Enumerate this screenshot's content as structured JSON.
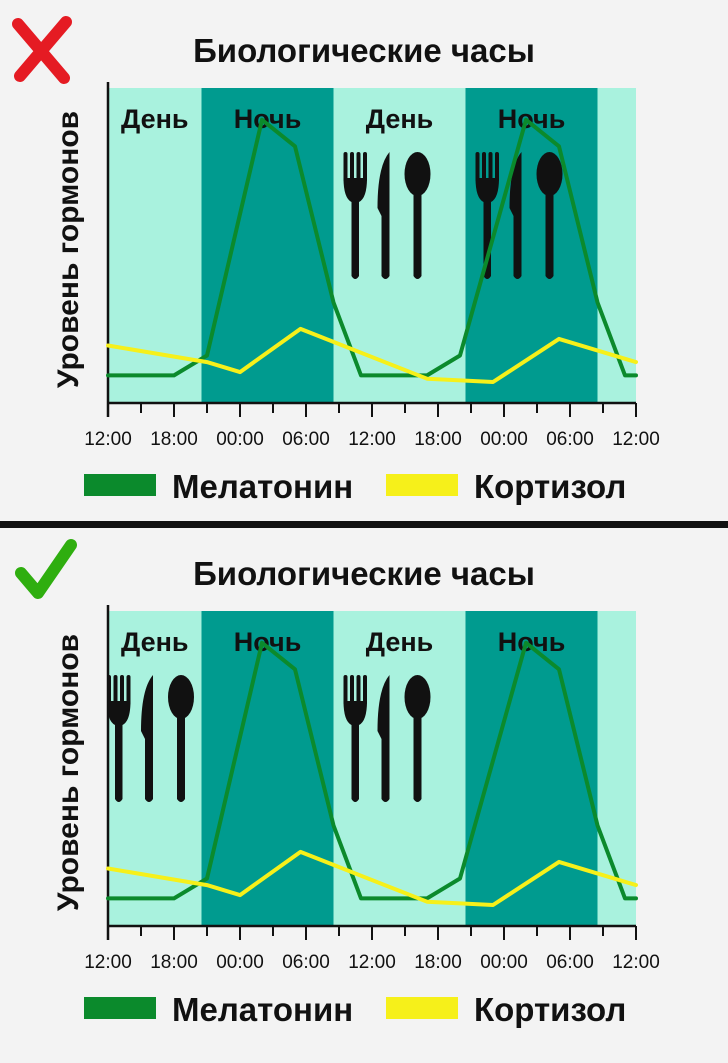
{
  "colors": {
    "background": "#f3f3f3",
    "day_band": "#a9f2de",
    "night_band": "#009b8f",
    "melatonin": "#0b8a2c",
    "cortisol": "#f6f01a",
    "cross": "#e51b23",
    "check": "#2fae0f",
    "divider": "#111111",
    "cutlery": "#111111"
  },
  "chart_data": [
    {
      "type": "line",
      "badge": "cross-icon",
      "title": "Биологические часы",
      "ylabel": "Уровень гормонов",
      "xlabel": "",
      "x_ticks": [
        "12:00",
        "18:00",
        "00:00",
        "06:00",
        "12:00",
        "18:00",
        "00:00",
        "06:00",
        "12:00"
      ],
      "x_hours": [
        0,
        6,
        12,
        18,
        24,
        30,
        36,
        42,
        48
      ],
      "xlim": [
        0,
        48
      ],
      "ylim": [
        0,
        100
      ],
      "bands": [
        {
          "label": "День",
          "start": 0,
          "end": 8.5,
          "kind": "day"
        },
        {
          "label": "Ночь",
          "start": 8.5,
          "end": 20.5,
          "kind": "night"
        },
        {
          "label": "День",
          "start": 20.5,
          "end": 32.5,
          "kind": "day"
        },
        {
          "label": "Ночь",
          "start": 32.5,
          "end": 44.5,
          "kind": "night"
        },
        {
          "label": "",
          "start": 44.5,
          "end": 48,
          "kind": "day"
        }
      ],
      "meals": [
        {
          "name": "cutlery-icon",
          "hour": 25.5,
          "level": 53
        },
        {
          "name": "cutlery-icon",
          "hour": 37.5,
          "level": 53
        }
      ],
      "series": [
        {
          "name": "Мелатонин",
          "color": "#0b8a2c",
          "x": [
            0,
            6,
            9,
            14,
            17,
            20.5,
            23,
            29,
            32,
            38,
            41,
            44.5,
            47,
            48
          ],
          "y": [
            5,
            5,
            11,
            82,
            74,
            27,
            5,
            5,
            11,
            82,
            74,
            27,
            5,
            5
          ]
        },
        {
          "name": "Кортизол",
          "color": "#f6f01a",
          "x": [
            0,
            9,
            12,
            17.5,
            29,
            35,
            41,
            48
          ],
          "y": [
            14,
            9,
            6,
            19,
            4,
            3,
            16,
            9
          ]
        }
      ]
    },
    {
      "type": "line",
      "badge": "check-icon",
      "title": "Биологические часы",
      "ylabel": "Уровень гормонов",
      "xlabel": "",
      "x_ticks": [
        "12:00",
        "18:00",
        "00:00",
        "06:00",
        "12:00",
        "18:00",
        "00:00",
        "06:00",
        "12:00"
      ],
      "x_hours": [
        0,
        6,
        12,
        18,
        24,
        30,
        36,
        42,
        48
      ],
      "xlim": [
        0,
        48
      ],
      "ylim": [
        0,
        100
      ],
      "bands": [
        {
          "label": "День",
          "start": 0,
          "end": 8.5,
          "kind": "day"
        },
        {
          "label": "Ночь",
          "start": 8.5,
          "end": 20.5,
          "kind": "night"
        },
        {
          "label": "День",
          "start": 20.5,
          "end": 32.5,
          "kind": "day"
        },
        {
          "label": "Ночь",
          "start": 32.5,
          "end": 44.5,
          "kind": "night"
        },
        {
          "label": "",
          "start": 44.5,
          "end": 48,
          "kind": "day"
        }
      ],
      "meals": [
        {
          "name": "cutlery-icon",
          "hour": 4,
          "level": 53
        },
        {
          "name": "cutlery-icon",
          "hour": 25.5,
          "level": 53
        }
      ],
      "series": [
        {
          "name": "Мелатонин",
          "color": "#0b8a2c",
          "x": [
            0,
            6,
            9,
            14,
            17,
            20.5,
            23,
            29,
            32,
            38,
            41,
            44.5,
            47,
            48
          ],
          "y": [
            5,
            5,
            11,
            82,
            74,
            27,
            5,
            5,
            11,
            82,
            74,
            27,
            5,
            5
          ]
        },
        {
          "name": "Кортизол",
          "color": "#f6f01a",
          "x": [
            0,
            9,
            12,
            17.5,
            29,
            35,
            41,
            48
          ],
          "y": [
            14,
            9,
            6,
            19,
            4,
            3,
            16,
            9
          ]
        }
      ]
    }
  ]
}
